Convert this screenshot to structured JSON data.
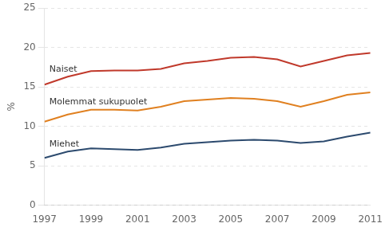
{
  "chart_data": {
    "type": "line",
    "ylabel": "%",
    "x": [
      1997,
      1998,
      1999,
      2000,
      2001,
      2002,
      2003,
      2004,
      2005,
      2006,
      2007,
      2008,
      2009,
      2010,
      2011
    ],
    "series": [
      {
        "name": "Naiset",
        "color": "#c0392b",
        "values": [
          15.3,
          16.3,
          17.0,
          17.1,
          17.1,
          17.3,
          18.0,
          18.3,
          18.7,
          18.8,
          18.5,
          17.6,
          18.3,
          19.0,
          19.3
        ]
      },
      {
        "name": "Molemmat sukupuolet",
        "color": "#e08020",
        "values": [
          10.6,
          11.5,
          12.1,
          12.1,
          12.0,
          12.5,
          13.2,
          13.4,
          13.6,
          13.5,
          13.2,
          12.5,
          13.2,
          14.0,
          14.3
        ]
      },
      {
        "name": "Miehet",
        "color": "#2c4a6e",
        "values": [
          6.0,
          6.8,
          7.2,
          7.1,
          7.0,
          7.3,
          7.8,
          8.0,
          8.2,
          8.3,
          8.2,
          7.9,
          8.1,
          8.7,
          9.2
        ]
      }
    ],
    "xlim": [
      1997,
      2011
    ],
    "xticks": [
      1997,
      1999,
      2001,
      2003,
      2005,
      2007,
      2009,
      2011
    ],
    "ylim": [
      0,
      25
    ],
    "yticks": [
      0,
      5,
      10,
      15,
      20,
      25
    ],
    "grid": true
  }
}
